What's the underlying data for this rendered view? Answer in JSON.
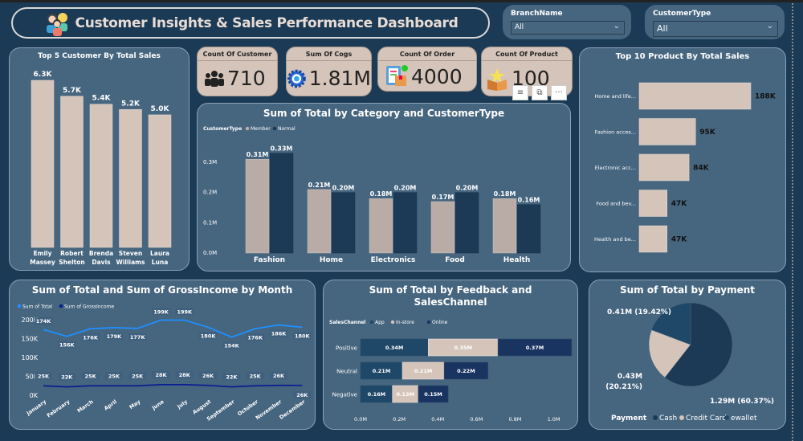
{
  "header": {
    "title": "Customer Insights & Sales Performance Dashboard",
    "icon": "customers-group-icon"
  },
  "slicers": [
    {
      "label": "BranchName",
      "value": "All"
    },
    {
      "label": "CustomerType",
      "value": "All"
    }
  ],
  "kpis": [
    {
      "label": "Count Of Customer",
      "value": "710",
      "icon": "people-icon"
    },
    {
      "label": "Sum Of Cogs",
      "value": "1.81M",
      "icon": "gear-icon"
    },
    {
      "label": "Count Of Order",
      "value": "4000",
      "icon": "order-clipboard-icon"
    },
    {
      "label": "Count Of Product",
      "value": "100",
      "icon": "product-box-icon"
    }
  ],
  "visual_tools": {
    "filter": "filter-icon",
    "focus": "focus-mode-icon",
    "more": "···"
  },
  "colors": {
    "background": "#1b3a55",
    "panel": "#46657f",
    "beige": "#d5c4b9",
    "member": "#b9aca6",
    "navy": "#1c3a55",
    "line_total": "#1e90ff",
    "line_gross": "#0a1f8f"
  },
  "chart_data": [
    {
      "id": "top5",
      "type": "bar",
      "title": "Top 5 Customer By Total Sales",
      "categories": [
        "Emily Massey",
        "Robert Shelton",
        "Brenda Davis",
        "Steven Williams",
        "Laura Luna"
      ],
      "category_lines": [
        [
          "Emily",
          "Massey"
        ],
        [
          "Robert",
          "Shelton"
        ],
        [
          "Brenda",
          "Davis"
        ],
        [
          "Steven",
          "Williams"
        ],
        [
          "Laura",
          "Luna"
        ]
      ],
      "values": [
        6300,
        5700,
        5400,
        5200,
        5000
      ],
      "labels": [
        "6.3K",
        "5.7K",
        "5.4K",
        "5.2K",
        "5.0K"
      ],
      "ylim": [
        0,
        6300
      ]
    },
    {
      "id": "category",
      "type": "bar",
      "title": "Sum of Total by Category and CustomerType",
      "legend_title": "CustomerType",
      "categories": [
        "Fashion",
        "Home",
        "Electronics",
        "Food",
        "Health"
      ],
      "series": [
        {
          "name": "Member",
          "values": [
            0.31,
            0.21,
            0.18,
            0.17,
            0.18
          ],
          "labels": [
            "0.31M",
            "0.21M",
            "0.18M",
            "0.17M",
            "0.18M"
          ]
        },
        {
          "name": "Normal",
          "values": [
            0.33,
            0.2,
            0.2,
            0.2,
            0.16
          ],
          "labels": [
            "0.33M",
            "0.20M",
            "0.20M",
            "0.20M",
            "0.16M"
          ]
        }
      ],
      "yticks": [
        "0.0M",
        "0.1M",
        "0.2M",
        "0.3M"
      ],
      "ylim": [
        0,
        0.35
      ],
      "unit": "M"
    },
    {
      "id": "top10",
      "type": "bar",
      "orientation": "horizontal",
      "title": "Top 10 Product By Total Sales",
      "categories": [
        "Home and life...",
        "Fashion acces...",
        "Electronic acc...",
        "Food and bev...",
        "Health and be..."
      ],
      "values": [
        188,
        95,
        84,
        47,
        47
      ],
      "labels": [
        "188K",
        "95K",
        "84K",
        "47K",
        "47K"
      ],
      "xlim": [
        0,
        188
      ]
    },
    {
      "id": "monthly",
      "type": "line",
      "title": "Sum of Total and Sum of GrossIncome by Month",
      "x": [
        "January",
        "February",
        "March",
        "April",
        "May",
        "June",
        "July",
        "August",
        "September",
        "October",
        "November",
        "December"
      ],
      "series": [
        {
          "name": "Sum of Total",
          "values": [
            174,
            156,
            176,
            179,
            177,
            199,
            199,
            180,
            154,
            176,
            186,
            180
          ],
          "labels": [
            "174K",
            "156K",
            "176K",
            "179K",
            "177K",
            "199K",
            "199K",
            "180K",
            "154K",
            "176K",
            "186K",
            "180K"
          ]
        },
        {
          "name": "Sum of GrossIncome",
          "values": [
            25,
            22,
            25,
            25,
            25,
            28,
            28,
            26,
            22,
            25,
            26,
            26
          ],
          "labels": [
            "25K",
            "22K",
            "25K",
            "25K",
            "25K",
            "28K",
            "28K",
            "26K",
            "22K",
            "25K",
            "26K",
            "26K"
          ]
        }
      ],
      "yticks": [
        "0K",
        "50K",
        "100K",
        "150K",
        "200K"
      ],
      "ylim": [
        0,
        200
      ]
    },
    {
      "id": "feedback",
      "type": "bar",
      "orientation": "horizontal",
      "stacked": true,
      "title": "Sum of Total by Feedback and SalesChannel",
      "title_lines": [
        "Sum of Total by Feedback and",
        "SalesChannel"
      ],
      "legend_title": "SalesChannel",
      "categories": [
        "Positive",
        "Neutral",
        "Negative"
      ],
      "series": [
        {
          "name": "App",
          "values": [
            0.34,
            0.21,
            0.16
          ],
          "labels": [
            "0.34M",
            "0.21M",
            "0.16M"
          ]
        },
        {
          "name": "In-store",
          "values": [
            0.35,
            0.21,
            0.13
          ],
          "labels": [
            "0.35M",
            "0.21M",
            "0.13M"
          ]
        },
        {
          "name": "Online",
          "values": [
            0.37,
            0.22,
            0.15
          ],
          "labels": [
            "0.37M",
            "0.22M",
            "0.15M"
          ]
        }
      ],
      "xticks": [
        "0.0M",
        "0.2M",
        "0.4M",
        "0.6M",
        "0.8M",
        "1.0M"
      ],
      "xlim": [
        0,
        1.0
      ]
    },
    {
      "id": "payment",
      "type": "pie",
      "title": "Sum of Total by Payment",
      "legend_title": "Payment",
      "categories": [
        "Cash",
        "Credit Card",
        "ewallet"
      ],
      "values": [
        1.29,
        0.43,
        0.41
      ],
      "percents": [
        60.37,
        20.21,
        19.42
      ],
      "labels": [
        "1.29M (60.37%)",
        "0.43M (20.21%)",
        "0.41M (19.42%)"
      ],
      "label_lines": [
        [
          "1.29M (60.37%)"
        ],
        [
          "0.43M",
          "(20.21%)"
        ],
        [
          "0.41M (19.42%)"
        ]
      ]
    }
  ]
}
